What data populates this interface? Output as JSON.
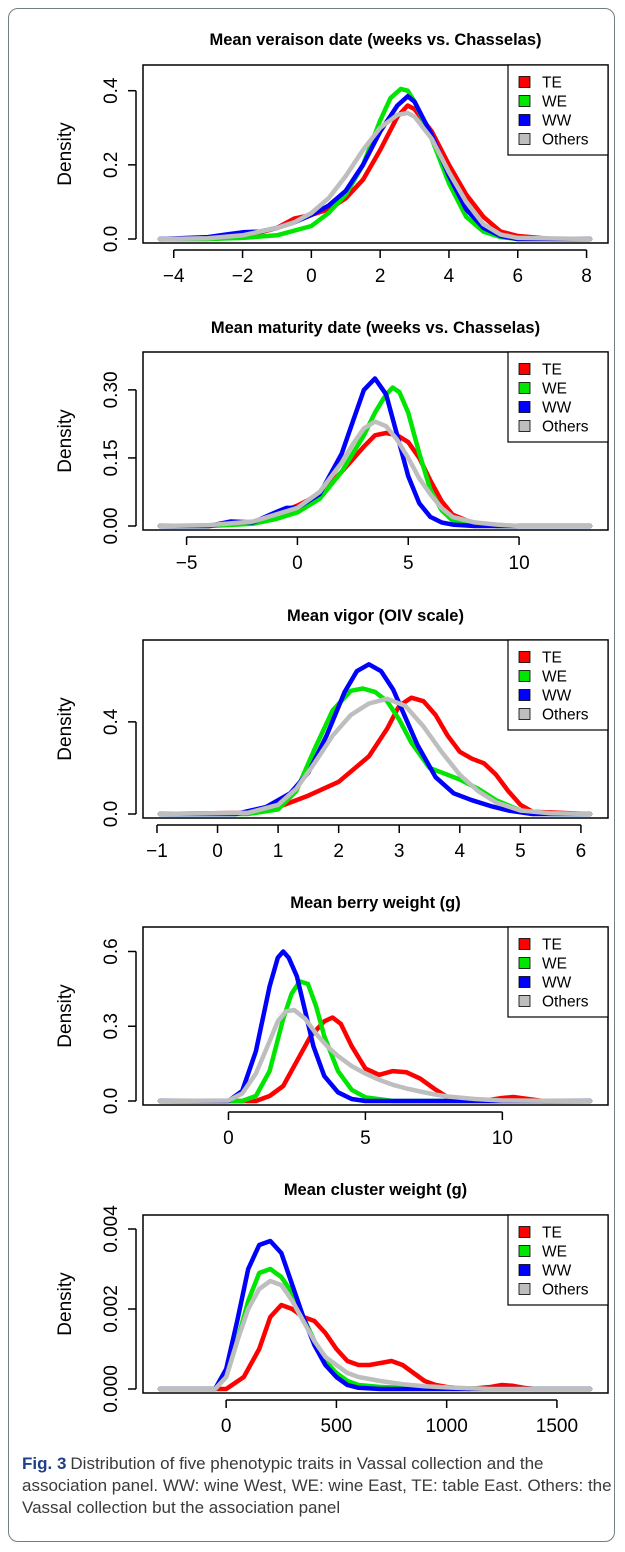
{
  "figure": {
    "caption_label": "Fig. 3",
    "caption_text": "Distribution of five phenotypic traits in Vassal collection and the association panel. WW: wine West, WE: wine East, TE: table East. Others: the Vassal collection but the association panel"
  },
  "colors": {
    "TE": "#ff0000",
    "WE": "#00e600",
    "WW": "#0000ff",
    "Others": "#bebebe"
  },
  "chart_data": [
    {
      "type": "line",
      "title": "Mean veraison date (weeks vs. Chasselas)",
      "xlabel": "",
      "ylabel": "Density",
      "xlim": [
        -4.4,
        8.1
      ],
      "ylim": [
        0,
        0.41
      ],
      "xticks": [
        -4,
        -2,
        0,
        2,
        4,
        6,
        8
      ],
      "yticks": [
        0.0,
        0.2,
        0.4
      ],
      "ytick_labels": [
        "0.0",
        "0.2",
        "0.4"
      ],
      "legend": "top-right",
      "series": [
        {
          "name": "TE",
          "x": [
            -4.4,
            -3,
            -2,
            -1,
            -0.5,
            0,
            0.5,
            1,
            1.5,
            2,
            2.5,
            2.8,
            3,
            3.5,
            4,
            4.5,
            5,
            5.5,
            6,
            7,
            8.1
          ],
          "y": [
            0,
            0,
            0.005,
            0.03,
            0.055,
            0.065,
            0.08,
            0.11,
            0.16,
            0.24,
            0.33,
            0.36,
            0.35,
            0.29,
            0.2,
            0.12,
            0.06,
            0.02,
            0.008,
            0,
            0
          ]
        },
        {
          "name": "WE",
          "x": [
            -4.4,
            -3,
            -2,
            -1,
            0,
            0.5,
            1,
            1.5,
            2,
            2.3,
            2.6,
            2.8,
            3,
            3.5,
            4,
            4.5,
            5,
            5.5,
            6,
            8.1
          ],
          "y": [
            0,
            0,
            0.003,
            0.01,
            0.035,
            0.07,
            0.12,
            0.2,
            0.32,
            0.38,
            0.405,
            0.4,
            0.37,
            0.27,
            0.15,
            0.06,
            0.02,
            0.005,
            0,
            0
          ]
        },
        {
          "name": "WW",
          "x": [
            -4.4,
            -3,
            -2.5,
            -2,
            -1.5,
            -1,
            -0.5,
            0,
            0.5,
            1,
            1.5,
            2,
            2.5,
            2.8,
            3,
            3.5,
            4,
            4.5,
            5,
            5.5,
            6,
            8.1
          ],
          "y": [
            0,
            0.005,
            0.012,
            0.018,
            0.02,
            0.03,
            0.045,
            0.065,
            0.09,
            0.13,
            0.2,
            0.29,
            0.36,
            0.385,
            0.37,
            0.28,
            0.17,
            0.08,
            0.03,
            0.008,
            0,
            0
          ]
        },
        {
          "name": "Others",
          "x": [
            -4.4,
            -3,
            -2,
            -1,
            -0.5,
            0,
            0.5,
            1,
            1.5,
            2,
            2.5,
            2.8,
            3,
            3.5,
            4,
            4.5,
            5,
            5.5,
            6,
            8.1
          ],
          "y": [
            0,
            0.002,
            0.01,
            0.03,
            0.045,
            0.07,
            0.11,
            0.17,
            0.24,
            0.3,
            0.335,
            0.34,
            0.33,
            0.27,
            0.18,
            0.1,
            0.04,
            0.012,
            0.003,
            0
          ]
        }
      ]
    },
    {
      "type": "line",
      "title": "Mean maturity date (weeks vs. Chasselas)",
      "xlabel": "",
      "ylabel": "Density",
      "xlim": [
        -6.2,
        13.2
      ],
      "ylim": [
        0,
        0.335
      ],
      "xticks": [
        -5,
        0,
        5,
        10
      ],
      "yticks": [
        0.0,
        0.15,
        0.3
      ],
      "ytick_labels": [
        "0.00",
        "0.15",
        "0.30"
      ],
      "legend": "top-right",
      "series": [
        {
          "name": "TE",
          "x": [
            -6.2,
            -4,
            -2,
            -1,
            0,
            1,
            2,
            3,
            3.5,
            4,
            4.5,
            5,
            5.5,
            6,
            6.5,
            7,
            8,
            9,
            13.2
          ],
          "y": [
            0,
            0,
            0.008,
            0.025,
            0.045,
            0.07,
            0.12,
            0.175,
            0.2,
            0.205,
            0.2,
            0.185,
            0.15,
            0.1,
            0.055,
            0.025,
            0.005,
            0,
            0
          ]
        },
        {
          "name": "WE",
          "x": [
            -6.2,
            -4,
            -2,
            -1,
            0,
            1,
            2,
            3,
            3.5,
            4,
            4.3,
            4.6,
            5,
            5.5,
            6,
            6.5,
            7,
            8,
            9,
            13.2
          ],
          "y": [
            0,
            0,
            0.005,
            0.015,
            0.03,
            0.06,
            0.12,
            0.2,
            0.25,
            0.29,
            0.305,
            0.295,
            0.25,
            0.16,
            0.08,
            0.035,
            0.012,
            0.002,
            0,
            0
          ]
        },
        {
          "name": "WW",
          "x": [
            -6.2,
            -4,
            -3,
            -2,
            -1,
            -0.5,
            0,
            1,
            2,
            2.5,
            3,
            3.5,
            4,
            4.5,
            5,
            5.5,
            6,
            6.5,
            7,
            8,
            9,
            13.2
          ],
          "y": [
            0,
            0,
            0.01,
            0.008,
            0.03,
            0.04,
            0.04,
            0.07,
            0.16,
            0.23,
            0.3,
            0.325,
            0.29,
            0.2,
            0.11,
            0.05,
            0.02,
            0.008,
            0.003,
            0,
            0,
            0
          ]
        },
        {
          "name": "Others",
          "x": [
            -6.2,
            -4,
            -2,
            -1,
            0,
            1,
            2,
            2.5,
            3,
            3.5,
            4,
            4.5,
            5,
            5.5,
            6,
            6.5,
            7,
            8,
            9,
            10,
            13.2
          ],
          "y": [
            0,
            0.002,
            0.01,
            0.025,
            0.04,
            0.075,
            0.14,
            0.18,
            0.215,
            0.23,
            0.22,
            0.19,
            0.15,
            0.105,
            0.07,
            0.04,
            0.02,
            0.008,
            0.003,
            0,
            0
          ]
        }
      ]
    },
    {
      "type": "line",
      "title": "Mean vigor (OIV scale)",
      "xlabel": "",
      "ylabel": "Density",
      "xlim": [
        -0.95,
        6.15
      ],
      "ylim": [
        0,
        0.66
      ],
      "xticks": [
        -1,
        0,
        1,
        2,
        3,
        4,
        5,
        6
      ],
      "yticks": [
        0.0,
        0.4
      ],
      "ytick_labels": [
        "0.0",
        "0.4"
      ],
      "legend": "top-right",
      "series": [
        {
          "name": "TE",
          "x": [
            -0.95,
            0.5,
            1,
            1.5,
            2,
            2.5,
            2.8,
            3,
            3.2,
            3.4,
            3.6,
            3.8,
            4,
            4.2,
            4.4,
            4.6,
            4.8,
            5,
            5.2,
            6.15
          ],
          "y": [
            0,
            0.005,
            0.03,
            0.08,
            0.14,
            0.25,
            0.37,
            0.47,
            0.505,
            0.49,
            0.43,
            0.34,
            0.27,
            0.24,
            0.22,
            0.17,
            0.1,
            0.04,
            0.01,
            0
          ]
        },
        {
          "name": "WE",
          "x": [
            -0.95,
            0.5,
            1,
            1.3,
            1.6,
            1.9,
            2.2,
            2.4,
            2.6,
            2.8,
            3,
            3.2,
            3.5,
            3.8,
            4,
            4.3,
            4.6,
            5,
            5.5,
            6.15
          ],
          "y": [
            0,
            0,
            0.02,
            0.1,
            0.28,
            0.45,
            0.535,
            0.545,
            0.53,
            0.49,
            0.41,
            0.31,
            0.2,
            0.17,
            0.15,
            0.11,
            0.06,
            0.015,
            0,
            0
          ]
        },
        {
          "name": "WW",
          "x": [
            -0.95,
            0.3,
            0.8,
            1.2,
            1.5,
            1.8,
            2.1,
            2.3,
            2.5,
            2.7,
            2.9,
            3.1,
            3.3,
            3.6,
            3.9,
            4.2,
            4.5,
            4.8,
            5.2,
            6.15
          ],
          "y": [
            0,
            0,
            0.03,
            0.09,
            0.18,
            0.34,
            0.53,
            0.62,
            0.65,
            0.62,
            0.54,
            0.42,
            0.3,
            0.16,
            0.09,
            0.06,
            0.035,
            0.015,
            0,
            0
          ]
        },
        {
          "name": "Others",
          "x": [
            -0.95,
            0.5,
            1,
            1.3,
            1.6,
            1.9,
            2.2,
            2.5,
            2.8,
            3.1,
            3.4,
            3.7,
            4,
            4.3,
            4.6,
            5,
            5.5,
            6.15
          ],
          "y": [
            0,
            0.005,
            0.04,
            0.11,
            0.22,
            0.34,
            0.43,
            0.48,
            0.5,
            0.47,
            0.38,
            0.27,
            0.17,
            0.1,
            0.05,
            0.015,
            0.003,
            0
          ]
        }
      ]
    },
    {
      "type": "line",
      "title": "Mean berry weight (g)",
      "xlabel": "",
      "ylabel": "Density",
      "xlim": [
        -2.5,
        13.2
      ],
      "ylim": [
        0,
        0.61
      ],
      "xticks": [
        0,
        5,
        10
      ],
      "yticks": [
        0.0,
        0.3,
        0.6
      ],
      "ytick_labels": [
        "0.0",
        "0.3",
        "0.6"
      ],
      "legend": "top-right",
      "series": [
        {
          "name": "TE",
          "x": [
            -2.5,
            1,
            1.5,
            2,
            2.5,
            3,
            3.5,
            3.8,
            4.1,
            4.5,
            5,
            5.5,
            6,
            6.5,
            7,
            7.5,
            8,
            8.5,
            9,
            9.5,
            10,
            10.4,
            10.8,
            11.5,
            13.2
          ],
          "y": [
            0,
            0,
            0.02,
            0.06,
            0.16,
            0.26,
            0.32,
            0.335,
            0.31,
            0.22,
            0.13,
            0.105,
            0.12,
            0.115,
            0.09,
            0.05,
            0.015,
            0.005,
            0.002,
            0.004,
            0.012,
            0.016,
            0.01,
            0,
            0
          ]
        },
        {
          "name": "WE",
          "x": [
            -2.5,
            0.5,
            1,
            1.5,
            2,
            2.3,
            2.6,
            2.9,
            3.2,
            3.5,
            4,
            4.5,
            5,
            6,
            13.2
          ],
          "y": [
            0,
            0,
            0.02,
            0.12,
            0.33,
            0.43,
            0.48,
            0.47,
            0.38,
            0.26,
            0.12,
            0.045,
            0.015,
            0,
            0
          ]
        },
        {
          "name": "WW",
          "x": [
            -2.5,
            0,
            0.5,
            1,
            1.5,
            1.8,
            2,
            2.2,
            2.5,
            2.8,
            3.1,
            3.5,
            4,
            4.5,
            5,
            13.2
          ],
          "y": [
            0,
            0,
            0.04,
            0.2,
            0.46,
            0.575,
            0.6,
            0.575,
            0.5,
            0.36,
            0.22,
            0.1,
            0.035,
            0.008,
            0,
            0
          ]
        },
        {
          "name": "Others",
          "x": [
            -2.5,
            0,
            0.5,
            1,
            1.5,
            1.8,
            2.1,
            2.4,
            2.8,
            3.2,
            3.6,
            4,
            4.5,
            5,
            5.5,
            6,
            6.5,
            7,
            7.5,
            8,
            9,
            10,
            13.2
          ],
          "y": [
            0,
            0.002,
            0.03,
            0.11,
            0.24,
            0.32,
            0.36,
            0.365,
            0.33,
            0.27,
            0.22,
            0.18,
            0.14,
            0.11,
            0.085,
            0.065,
            0.05,
            0.038,
            0.027,
            0.018,
            0.008,
            0.002,
            0
          ]
        }
      ]
    },
    {
      "type": "line",
      "title": "Mean cluster weight (g)",
      "xlabel": "",
      "ylabel": "Density",
      "xlim": [
        -300,
        1650
      ],
      "ylim": [
        0,
        0.0038
      ],
      "xticks": [
        0,
        500,
        1000,
        1500
      ],
      "yticks": [
        0.0,
        0.002,
        0.004
      ],
      "ytick_labels": [
        "0.000",
        "0.002",
        "0.004"
      ],
      "legend": "top-right",
      "series": [
        {
          "name": "TE",
          "x": [
            -300,
            0,
            80,
            150,
            200,
            250,
            300,
            350,
            400,
            450,
            500,
            550,
            600,
            650,
            700,
            750,
            800,
            850,
            900,
            950,
            1000,
            1100,
            1200,
            1250,
            1300,
            1350,
            1400,
            1650
          ],
          "y": [
            0,
            0,
            0.0003,
            0.001,
            0.0018,
            0.0021,
            0.002,
            0.0018,
            0.0017,
            0.0014,
            0.001,
            0.0007,
            0.0006,
            0.0006,
            0.00065,
            0.0007,
            0.0006,
            0.0004,
            0.0002,
            0.0001,
            5e-05,
            0,
            5e-05,
            0.0001,
            8e-05,
            3e-05,
            0,
            0
          ]
        },
        {
          "name": "WE",
          "x": [
            -300,
            -50,
            0,
            50,
            100,
            150,
            200,
            250,
            300,
            350,
            400,
            450,
            500,
            550,
            600,
            700,
            800,
            900,
            1000,
            1100,
            1200,
            1650
          ],
          "y": [
            0,
            0,
            0.0003,
            0.0012,
            0.0022,
            0.0029,
            0.003,
            0.0028,
            0.0024,
            0.0018,
            0.0012,
            0.0007,
            0.0004,
            0.0002,
            0.0001,
            5e-05,
            3e-05,
            2e-05,
            1e-05,
            2e-05,
            0,
            0
          ]
        },
        {
          "name": "WW",
          "x": [
            -300,
            -50,
            0,
            50,
            100,
            150,
            200,
            250,
            300,
            350,
            400,
            450,
            500,
            550,
            600,
            700,
            1650
          ],
          "y": [
            0,
            0,
            0.0005,
            0.0017,
            0.003,
            0.0036,
            0.0037,
            0.0034,
            0.0026,
            0.0018,
            0.0011,
            0.0006,
            0.0003,
            0.0001,
            3e-05,
            0,
            0
          ]
        },
        {
          "name": "Others",
          "x": [
            -300,
            -50,
            0,
            50,
            100,
            150,
            200,
            250,
            300,
            350,
            400,
            450,
            500,
            550,
            600,
            700,
            800,
            900,
            1000,
            1100,
            1200,
            1650
          ],
          "y": [
            0,
            0,
            0.0003,
            0.0012,
            0.002,
            0.0025,
            0.0027,
            0.0026,
            0.0022,
            0.0017,
            0.0012,
            0.0008,
            0.0006,
            0.0004,
            0.0003,
            0.0002,
            0.00012,
            7e-05,
            4e-05,
            2e-05,
            0,
            0
          ]
        }
      ]
    }
  ]
}
